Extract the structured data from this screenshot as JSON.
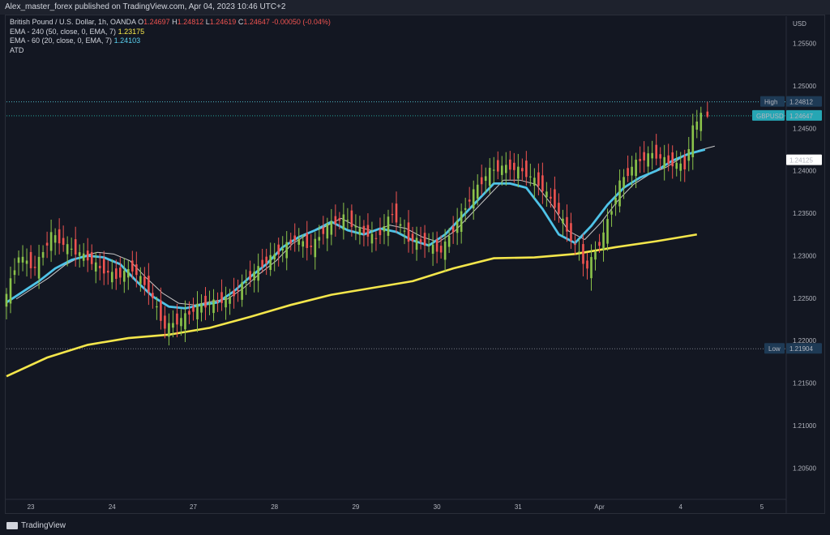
{
  "header": {
    "published": "Alex_master_forex published on TradingView.com, Apr 04, 2023 10:46 UTC+2"
  },
  "legend": {
    "symbol": "British Pound / U.S. Dollar, 1h, OANDA",
    "ohlc": {
      "o_label": "O",
      "o": "1.24697",
      "h_label": "H",
      "h": "1.24812",
      "l_label": "L",
      "l": "1.24619",
      "c_label": "C",
      "c": "1.24647",
      "chg": "-0.00050 (-0.04%)"
    },
    "ema240": {
      "label": "EMA - 240 (50, close, 0, EMA, 7)",
      "value": "1.23175"
    },
    "ema60": {
      "label": "EMA - 60 (20, close, 0, EMA, 7)",
      "value": "1.24103"
    },
    "atd": "ATD"
  },
  "footer": {
    "brand": "TradingView"
  },
  "colors": {
    "background": "#131722",
    "up": "#8bc34a",
    "down": "#ef5350",
    "ema240": "#f4e64b",
    "ema60": "#4fc3e8",
    "ema_thin": "#c8c8c8"
  },
  "chart_data": {
    "type": "line",
    "title": "British Pound / U.S. Dollar, 1h, OANDA",
    "currency": "USD",
    "y_ticks": [
      "1.25500",
      "1.25000",
      "1.24500",
      "1.24000",
      "1.23500",
      "1.23000",
      "1.22500",
      "1.22000",
      "1.21500",
      "1.21000",
      "1.20500"
    ],
    "y_tick_values": [
      1.255,
      1.25,
      1.245,
      1.24,
      1.235,
      1.23,
      1.225,
      1.22,
      1.215,
      1.21,
      1.205
    ],
    "ylim": [
      1.2015,
      1.2582
    ],
    "x_ticks": [
      "23",
      "24",
      "27",
      "28",
      "29",
      "30",
      "31",
      "Apr",
      "4",
      "5"
    ],
    "x_tick_values": [
      3,
      13,
      23,
      33,
      43,
      53,
      63,
      73,
      83,
      93
    ],
    "xlim": [
      0,
      96
    ],
    "markers": {
      "high": {
        "label": "High",
        "value": "1.24812"
      },
      "current": {
        "label": "GBPUSD",
        "value": "1.24647"
      },
      "ema": {
        "value": "1.24125"
      },
      "low": {
        "label": "Low",
        "value": "1.21904"
      }
    },
    "series": [
      {
        "name": "Price",
        "x": [
          0,
          2,
          4,
          6,
          8,
          10,
          12,
          14,
          16,
          18,
          20,
          22,
          24,
          26,
          28,
          30,
          32,
          34,
          36,
          38,
          40,
          42,
          44,
          46,
          48,
          50,
          52,
          54,
          56,
          58,
          60,
          62,
          64,
          66,
          68,
          70,
          72,
          74,
          76,
          78,
          80,
          82,
          84,
          85,
          86
        ],
        "y": [
          1.224,
          1.23,
          1.2285,
          1.2325,
          1.231,
          1.23,
          1.2285,
          1.2275,
          1.2285,
          1.226,
          1.2215,
          1.2225,
          1.224,
          1.2245,
          1.225,
          1.227,
          1.229,
          1.2305,
          1.232,
          1.231,
          1.2335,
          1.2345,
          1.233,
          1.232,
          1.235,
          1.232,
          1.2315,
          1.2305,
          1.234,
          1.2375,
          1.24,
          1.2405,
          1.24,
          1.2385,
          1.236,
          1.232,
          1.2285,
          1.2325,
          1.2385,
          1.241,
          1.242,
          1.241,
          1.2405,
          1.245,
          1.2465
        ]
      },
      {
        "name": "EMA - 60",
        "x": [
          0,
          4,
          6,
          8,
          10,
          12,
          14,
          16,
          18,
          20,
          22,
          24,
          26,
          28,
          30,
          32,
          34,
          36,
          38,
          40,
          42,
          44,
          46,
          48,
          50,
          52,
          54,
          56,
          58,
          60,
          62,
          64,
          66,
          68,
          70,
          72,
          74,
          76,
          78,
          80,
          82,
          84,
          86
        ],
        "y": [
          1.2245,
          1.227,
          1.2285,
          1.2295,
          1.23,
          1.2298,
          1.229,
          1.227,
          1.2252,
          1.224,
          1.2238,
          1.2242,
          1.2245,
          1.2258,
          1.2275,
          1.229,
          1.231,
          1.2322,
          1.233,
          1.234,
          1.233,
          1.2325,
          1.2332,
          1.2328,
          1.2318,
          1.2312,
          1.2325,
          1.2345,
          1.2365,
          1.2385,
          1.2385,
          1.238,
          1.2355,
          1.2325,
          1.2315,
          1.2335,
          1.236,
          1.238,
          1.2392,
          1.24,
          1.2412,
          1.242,
          1.2425
        ]
      },
      {
        "name": "EMA - 240",
        "x": [
          0,
          5,
          10,
          15,
          20,
          25,
          30,
          35,
          40,
          45,
          50,
          55,
          60,
          65,
          70,
          75,
          80,
          85
        ],
        "y": [
          1.2158,
          1.218,
          1.2195,
          1.2203,
          1.2207,
          1.2215,
          1.2228,
          1.2242,
          1.2254,
          1.2262,
          1.227,
          1.2285,
          1.2297,
          1.2298,
          1.2302,
          1.231,
          1.2317,
          1.2325
        ]
      }
    ]
  }
}
